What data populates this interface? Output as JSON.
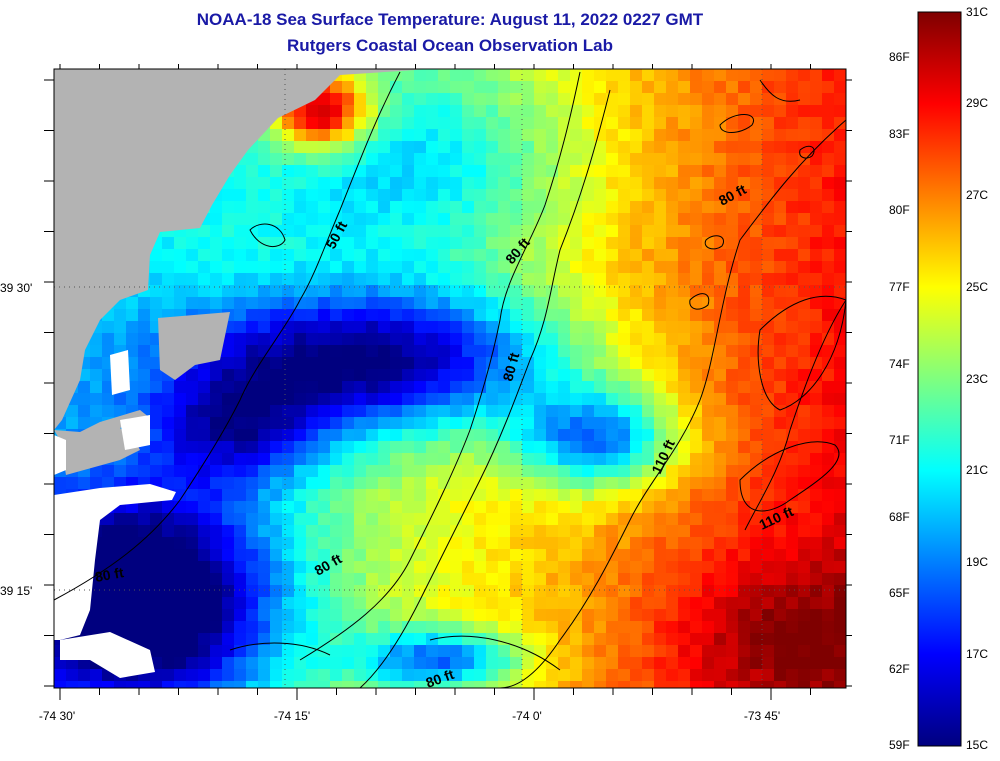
{
  "title": {
    "line1": "NOAA-18 Sea Surface Temperature:  August 11, 2022 0227 GMT",
    "line2": "Rutgers Coastal Ocean Observation Lab"
  },
  "map": {
    "colors": {
      "land": "#b3b3b3",
      "cloud": "#ffffff",
      "contour": "#000000"
    },
    "longitude_labels": [
      "-74 30'",
      "-74 15'",
      "-74 0'",
      "-73 45'"
    ],
    "latitude_labels": [
      "39 30'",
      "39 15'"
    ],
    "contour_labels": [
      "50 ft",
      "80 ft",
      "80 ft",
      "80 ft",
      "110 ft",
      "110 ft",
      "80 ft",
      "80 ft",
      "80 ft"
    ]
  },
  "colorbar": {
    "fahrenheit_labels": [
      "86F",
      "83F",
      "80F",
      "77F",
      "74F",
      "71F",
      "68F",
      "65F",
      "62F",
      "59F"
    ],
    "celsius_labels": [
      "31C",
      "29C",
      "27C",
      "25C",
      "23C",
      "21C",
      "19C",
      "17C",
      "15C"
    ],
    "range_celsius": [
      15,
      31
    ],
    "colormap": [
      "#00007f",
      "#0000ff",
      "#007fff",
      "#00ffff",
      "#7fff7f",
      "#ffff00",
      "#ff7f00",
      "#ff0000",
      "#7f0000"
    ]
  }
}
